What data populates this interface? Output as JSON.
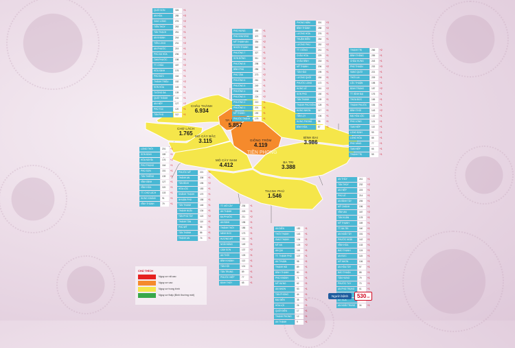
{
  "colors": {
    "very_high": "#e62020",
    "high": "#f58a2c",
    "medium": "#f5e64a",
    "new_normal": "#38a84a",
    "list_name_bg": "#49b8d4",
    "change_text": "#d0021b"
  },
  "regions": [
    {
      "id": "chau-thanh",
      "name": "CHÂU THÀNH",
      "value": "6.934",
      "level": "medium"
    },
    {
      "id": "tp-ben-tre",
      "name": "TP. BẾN TRE",
      "value": "5.857",
      "level": "high"
    },
    {
      "id": "cho-lach",
      "name": "CHỢ LÁCH",
      "value": "1.765",
      "level": "medium"
    },
    {
      "id": "mo-cay-bac",
      "name": "MỎ CÀY BẮC",
      "value": "3.115",
      "level": "medium"
    },
    {
      "id": "giong-trom",
      "name": "GIỒNG TRÔM",
      "value": "4.119",
      "level": "high"
    },
    {
      "id": "binh-dai",
      "name": "BÌNH ĐẠI",
      "value": "3.986",
      "level": "medium"
    },
    {
      "id": "mo-cay-nam",
      "name": "MỎ CÀY NAM",
      "value": "4.412",
      "level": "medium"
    },
    {
      "id": "ba-tri",
      "name": "BA TRI",
      "value": "3.388",
      "level": "medium"
    },
    {
      "id": "thanh-phu",
      "name": "THẠNH PHÚ",
      "value": "1.546",
      "level": "medium"
    }
  ],
  "lists": [
    {
      "id": "list-chau-thanh",
      "rows": [
        {
          "name": "QUỚI SƠN",
          "count": "326",
          "change": "+1"
        },
        {
          "name": "AN HÓA",
          "count": "285",
          "change": "+3"
        },
        {
          "name": "GIAO LONG",
          "count": "276",
          "change": "+2"
        },
        {
          "name": "TIÊN THỦY",
          "count": "263",
          "change": "+1"
        },
        {
          "name": "TÂN THẠCH",
          "count": "251",
          "change": "+1"
        },
        {
          "name": "AN KHÁNH",
          "count": "244",
          "change": "+1"
        },
        {
          "name": "TIÊN LONG",
          "count": "231",
          "change": "+2"
        },
        {
          "name": "AN PHƯỚC",
          "count": "219",
          "change": "+1"
        },
        {
          "name": "PHÚ AN HÒA",
          "count": "206",
          "change": "+3"
        },
        {
          "name": "TAM PHƯỚC",
          "count": "198",
          "change": "+1"
        },
        {
          "name": "TT. CHÂU",
          "count": "187",
          "change": "+2"
        },
        {
          "name": "HỮU ĐỊNH",
          "count": "176",
          "change": "+1"
        },
        {
          "name": "PHÚ ĐỨC",
          "count": "164",
          "change": "+1"
        },
        {
          "name": "THÀNH TRIỆU",
          "count": "152",
          "change": "+2"
        },
        {
          "name": "SƠN HÒA",
          "count": "145",
          "change": "+1"
        },
        {
          "name": "TƯỜNG ĐA",
          "count": "139",
          "change": "+1"
        },
        {
          "name": "QUỚI THÀNH",
          "count": "131",
          "change": "+1"
        },
        {
          "name": "AN HIỆP",
          "count": "127",
          "change": "+2"
        },
        {
          "name": "PHÚ TÚC",
          "count": "120",
          "change": "+1"
        },
        {
          "name": "TÂN PHÚ",
          "count": "112",
          "change": "+1"
        }
      ]
    },
    {
      "id": "list-tp-ben-tre",
      "rows": [
        {
          "name": "PHÚ HƯNG",
          "count": "389",
          "change": "+1"
        },
        {
          "name": "PHÚ KHƯƠNG",
          "count": "372",
          "change": "+3"
        },
        {
          "name": "MỸ THẠNH AN",
          "count": "354",
          "change": "+2"
        },
        {
          "name": "NHƠN THẠNH",
          "count": "340",
          "change": "+1"
        },
        {
          "name": "PHƯỜNG 7",
          "count": "327",
          "change": "+1"
        },
        {
          "name": "SƠN ĐÔNG",
          "count": "311",
          "change": "+2"
        },
        {
          "name": "PHƯỜNG 8",
          "count": "298",
          "change": "+1"
        },
        {
          "name": "BÌNH PHÚ",
          "count": "286",
          "change": "+1"
        },
        {
          "name": "PHÚ TÂN",
          "count": "273",
          "change": "+2"
        },
        {
          "name": "PHƯỜNG 6",
          "count": "261",
          "change": "+1"
        },
        {
          "name": "PHƯỜNG 5",
          "count": "249",
          "change": "+1"
        },
        {
          "name": "PHƯỜNG 4",
          "count": "236",
          "change": "+1"
        },
        {
          "name": "PHƯỜNG 3",
          "count": "224",
          "change": "+2"
        },
        {
          "name": "PHƯỜNG 2",
          "count": "213",
          "change": "+1"
        },
        {
          "name": "PHƯỜNG 1",
          "count": "201",
          "change": "+1"
        },
        {
          "name": "MỸ THÀNH",
          "count": "190",
          "change": "+1"
        },
        {
          "name": "PHƯỚC THẠNH",
          "count": "179",
          "change": "+1"
        }
      ]
    },
    {
      "id": "list-giong-trom",
      "rows": [
        {
          "name": "PHONG NẪM",
          "count": "301",
          "change": "+3"
        },
        {
          "name": "BÌNH THÀNH",
          "count": "288",
          "change": "+2"
        },
        {
          "name": "LƯƠNG HÒA",
          "count": "276",
          "change": "+1"
        },
        {
          "name": "THUẬN ĐIỀN",
          "count": "264",
          "change": "+1"
        },
        {
          "name": "LƯƠNG PHÚ",
          "count": "252",
          "change": "+2"
        },
        {
          "name": "TT. GIỒNG",
          "count": "241",
          "change": "+1"
        },
        {
          "name": "CHÂU HÒA",
          "count": "229",
          "change": "+1"
        },
        {
          "name": "CHÂU BÌNH",
          "count": "218",
          "change": "+1"
        },
        {
          "name": "MỸ THẠNH",
          "count": "206",
          "change": "+2"
        },
        {
          "name": "TÂN HÀO",
          "count": "195",
          "change": "+1"
        },
        {
          "name": "LƯƠNG QUỚI",
          "count": "184",
          "change": "+1"
        },
        {
          "name": "PHƯỚC LONG",
          "count": "172",
          "change": "+1"
        },
        {
          "name": "HƯNG LỄ",
          "count": "161",
          "change": "+2"
        },
        {
          "name": "SƠN PHÚ",
          "count": "150",
          "change": "+1"
        },
        {
          "name": "TÂN THANH",
          "count": "139",
          "change": "+1"
        },
        {
          "name": "THẠNH PHÚ ĐÔNG",
          "count": "128",
          "change": "+1"
        },
        {
          "name": "HƯNG NHƠN",
          "count": "117",
          "change": "+1"
        },
        {
          "name": "TÂN LỢI",
          "count": "106",
          "change": "+1"
        },
        {
          "name": "HƯNG PHONG",
          "count": "98",
          "change": "+1"
        },
        {
          "name": "BÌNH HÒA",
          "count": "87",
          "change": "+1"
        }
      ]
    },
    {
      "id": "list-binh-dai",
      "rows": [
        {
          "name": "THẠNH TRỊ",
          "count": "266",
          "change": "+2"
        },
        {
          "name": "BÌNH THẮNG",
          "count": "255",
          "change": "+1"
        },
        {
          "name": "CHÂU HƯNG",
          "count": "243",
          "change": "+1"
        },
        {
          "name": "PHÚ THUẬN",
          "count": "232",
          "change": "+3"
        },
        {
          "name": "VANG QUỚI",
          "count": "221",
          "change": "+1"
        },
        {
          "name": "THỚI LAI",
          "count": "209",
          "change": "+1"
        },
        {
          "name": "LỘC THUẬN",
          "count": "198",
          "change": "+1"
        },
        {
          "name": "ĐỊNH TRUNG",
          "count": "187",
          "change": "+2"
        },
        {
          "name": "TT. BÌNH ĐẠI",
          "count": "176",
          "change": "+1"
        },
        {
          "name": "THỪA ĐỨC",
          "count": "165",
          "change": "+1"
        },
        {
          "name": "THẠNH PHƯỚC",
          "count": "154",
          "change": "+1"
        },
        {
          "name": "BÌNH THỚI",
          "count": "143",
          "change": "+2"
        },
        {
          "name": "ĐẠI HÒA LỘC",
          "count": "132",
          "change": "+1"
        },
        {
          "name": "PHÚ LONG",
          "count": "121",
          "change": "+1"
        },
        {
          "name": "TAM HIỆP",
          "count": "110",
          "change": "+1"
        },
        {
          "name": "LONG ĐỊNH",
          "count": "99",
          "change": "+1"
        },
        {
          "name": "LONG HÒA",
          "count": "88",
          "change": "+1"
        },
        {
          "name": "PHÚ VANG",
          "count": "77",
          "change": "+1"
        },
        {
          "name": "TAM HIỆP",
          "count": "66",
          "change": "+1"
        },
        {
          "name": "THẠNH TRỊ",
          "count": "55",
          "change": "+1"
        }
      ]
    },
    {
      "id": "list-cho-lach",
      "rows": [
        {
          "name": "LONG THỚI",
          "count": "201",
          "change": "+1"
        },
        {
          "name": "SƠN ĐỊNH",
          "count": "189",
          "change": "+1"
        },
        {
          "name": "HÒA NGHĨA",
          "count": "176",
          "change": "+2"
        },
        {
          "name": "PHÚ PHỤNG",
          "count": "164",
          "change": "+1"
        },
        {
          "name": "PHÚ SƠN",
          "count": "151",
          "change": "+1"
        },
        {
          "name": "TÂN THIỀNG",
          "count": "139",
          "change": "+1"
        },
        {
          "name": "VĨNH BÌNH",
          "count": "127",
          "change": "+1"
        },
        {
          "name": "VĨNH HÒA",
          "count": "115",
          "change": "+1"
        },
        {
          "name": "TT. CHỢ LÁCH",
          "count": "103",
          "change": "+1"
        },
        {
          "name": "HƯNG KHÁNH",
          "count": "91",
          "change": "+1"
        },
        {
          "name": "VĨNH THÀNH",
          "count": "79",
          "change": "+1"
        }
      ]
    },
    {
      "id": "list-mo-cay-bac",
      "rows": [
        {
          "name": "PHƯỚC MỸ",
          "count": "221",
          "change": "+1"
        },
        {
          "name": "THÀNH AN",
          "count": "208",
          "change": "+1"
        },
        {
          "name": "TÂN BÌNH",
          "count": "195",
          "change": "+2"
        },
        {
          "name": "HÒA LỘC",
          "count": "183",
          "change": "+1"
        },
        {
          "name": "KHÁNH THẠNH",
          "count": "170",
          "change": "+1"
        },
        {
          "name": "NHUẬN PHÚ",
          "count": "158",
          "change": "+1"
        },
        {
          "name": "TÂN THANH",
          "count": "146",
          "change": "+1"
        },
        {
          "name": "THẠNH NGÃI",
          "count": "134",
          "change": "+1"
        },
        {
          "name": "TÂN PHÚ TÂY",
          "count": "122",
          "change": "+2"
        },
        {
          "name": "THANH TÂN",
          "count": "110",
          "change": "+1"
        },
        {
          "name": "PHÚ MỸ",
          "count": "98",
          "change": "+1"
        },
        {
          "name": "TÂN THÀNH",
          "count": "86",
          "change": "+1"
        },
        {
          "name": "THẠNH AN",
          "count": "74",
          "change": "+1"
        }
      ]
    },
    {
      "id": "list-mo-cay-nam",
      "rows": [
        {
          "name": "TT. MỎ CÀY",
          "count": "236",
          "change": "+1"
        },
        {
          "name": "AN THẠNH",
          "count": "223",
          "change": "+1"
        },
        {
          "name": "ĐA PHƯỚC",
          "count": "211",
          "change": "+2"
        },
        {
          "name": "AN ĐỊNH",
          "count": "198",
          "change": "+1"
        },
        {
          "name": "THÀNH THỚI",
          "count": "186",
          "change": "+1"
        },
        {
          "name": "MINH ĐỨC",
          "count": "173",
          "change": "+1"
        },
        {
          "name": "HƯƠNG MỸ",
          "count": "161",
          "change": "+1"
        },
        {
          "name": "NGÃI ĐĂNG",
          "count": "149",
          "change": "+1"
        },
        {
          "name": "CẨM SƠN",
          "count": "137",
          "change": "+2"
        },
        {
          "name": "AN THỚI",
          "count": "125",
          "change": "+1"
        },
        {
          "name": "BÌNH KHÁNH",
          "count": "113",
          "change": "+1"
        },
        {
          "name": "TÂN HỘI",
          "count": "101",
          "change": "+1"
        },
        {
          "name": "TÂN TRUNG",
          "count": "89",
          "change": "+1"
        },
        {
          "name": "PHƯỚC HIỆP",
          "count": "77",
          "change": "+1"
        },
        {
          "name": "ĐỊNH THỦY",
          "count": "65",
          "change": "+1"
        }
      ]
    },
    {
      "id": "list-thanh-phu",
      "rows": [
        {
          "name": "AN ĐIỀN",
          "count": "152",
          "change": "+1"
        },
        {
          "name": "THỚI THẠNH",
          "count": "143",
          "change": "+1"
        },
        {
          "name": "GIAO THẠNH",
          "count": "134",
          "change": "+1"
        },
        {
          "name": "MỸ AN",
          "count": "125",
          "change": "+2"
        },
        {
          "name": "AN QUI",
          "count": "116",
          "change": "+1"
        },
        {
          "name": "TT. THẠNH PHÚ",
          "count": "107",
          "change": "+1"
        },
        {
          "name": "AN THUẬN",
          "count": "98",
          "change": "+1"
        },
        {
          "name": "THẠNH HẢI",
          "count": "89",
          "change": "+1"
        },
        {
          "name": "BÌNH THẠNH",
          "count": "80",
          "change": "+1"
        },
        {
          "name": "PHÚ KHÁNH",
          "count": "71",
          "change": "+1"
        },
        {
          "name": "MỸ HƯNG",
          "count": "62",
          "change": "+1"
        },
        {
          "name": "AN NHƠN",
          "count": "53",
          "change": "+1"
        },
        {
          "name": "TÂN PHONG",
          "count": "44",
          "change": "+1"
        },
        {
          "name": "ĐẠI ĐIỀN",
          "count": "35",
          "change": "+1"
        },
        {
          "name": "HÒA LỢI",
          "count": "26",
          "change": "+1"
        },
        {
          "name": "QUỚI ĐIỀN",
          "count": "17",
          "change": "+1"
        },
        {
          "name": "THẠNH PHONG",
          "count": "12",
          "change": "+1"
        },
        {
          "name": "AN THẠNH",
          "count": "9",
          "change": "+1"
        }
      ]
    },
    {
      "id": "list-ba-tri",
      "rows": [
        {
          "name": "AN THỦY",
          "count": "241",
          "change": "+1"
        },
        {
          "name": "TÂN THỦY",
          "count": "232",
          "change": "+2"
        },
        {
          "name": "AN HIỆP",
          "count": "223",
          "change": "+1"
        },
        {
          "name": "PHÚ LỄ",
          "count": "214",
          "change": "+1"
        },
        {
          "name": "AN BÌNH TÂY",
          "count": "205",
          "change": "+1"
        },
        {
          "name": "MỸ CHÁNH",
          "count": "196",
          "change": "+1"
        },
        {
          "name": "VĨNH AN",
          "count": "187",
          "change": "+2"
        },
        {
          "name": "TÂN XUÂN",
          "count": "178",
          "change": "+1"
        },
        {
          "name": "MỸ THẠNH",
          "count": "169",
          "change": "+1"
        },
        {
          "name": "TT. BA TRI",
          "count": "160",
          "change": "+1"
        },
        {
          "name": "AN NGÃI TÂY",
          "count": "151",
          "change": "+1"
        },
        {
          "name": "PHƯỚC NGÃI",
          "count": "142",
          "change": "+1"
        },
        {
          "name": "VĨNH HÒA",
          "count": "133",
          "change": "+1"
        },
        {
          "name": "BẢO THẠNH",
          "count": "124",
          "change": "+1"
        },
        {
          "name": "AN ĐỨC",
          "count": "115",
          "change": "+1"
        },
        {
          "name": "MỸ NHƠN",
          "count": "106",
          "change": "+1"
        },
        {
          "name": "AN HÒA TÂY",
          "count": "97",
          "change": "+1"
        },
        {
          "name": "BẢO THUẬN",
          "count": "88",
          "change": "+1"
        },
        {
          "name": "TÂN HƯNG",
          "count": "79",
          "change": "+1"
        },
        {
          "name": "PHƯỚC TUY",
          "count": "70",
          "change": "+1"
        },
        {
          "name": "AN PHÚ TRUNG",
          "count": "61",
          "change": "+1"
        },
        {
          "name": "TÂN MỸ",
          "count": "52",
          "change": "+1"
        },
        {
          "name": "MỸ HÒA",
          "count": "43",
          "change": "+1"
        },
        {
          "name": "AN NGÃI TRUNG",
          "count": "34",
          "change": "+1"
        }
      ]
    }
  ],
  "legend": {
    "title": "CHÚ THÍCH",
    "items": [
      {
        "label": "Nguy cơ rất cao",
        "color": "#e62020"
      },
      {
        "label": "Nguy cơ cao",
        "color": "#f58a2c"
      },
      {
        "label": "Nguy cơ trung bình",
        "color": "#f5e64a"
      },
      {
        "label": "Nguy cơ thấp (Bình thường mới)",
        "color": "#38a84a"
      }
    ]
  },
  "population": {
    "label": "Người bệnh",
    "value": "530",
    "unit": "ca"
  },
  "watermark": "TIỀN PHONG"
}
